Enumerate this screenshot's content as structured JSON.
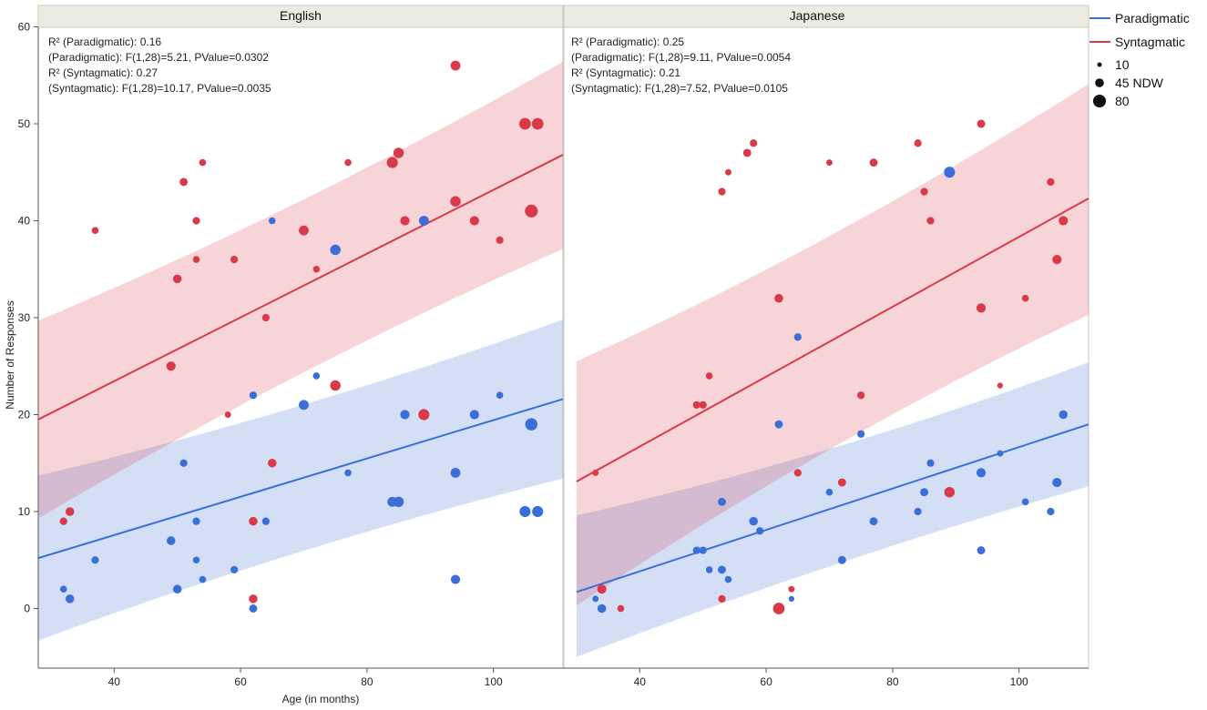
{
  "chart_data": {
    "type": "scatter",
    "ylabel": "Number of Responses",
    "xlabel": "Age (in months)",
    "ylim": [
      -7,
      60
    ],
    "xlim": [
      28,
      111
    ],
    "yticks": [
      0,
      10,
      20,
      30,
      40,
      50,
      60
    ],
    "xticks": [
      40,
      60,
      80,
      100
    ],
    "grid": false,
    "legend": {
      "placement": "top-right",
      "series": [
        {
          "name": "Paradigmatic",
          "color": "#3a6fd8"
        },
        {
          "name": "Syntagmatic",
          "color": "#d93a4a"
        }
      ],
      "sizes": [
        {
          "label": "10",
          "ndw": 10
        },
        {
          "label": "45 NDW",
          "ndw": 45
        },
        {
          "label": "80",
          "ndw": 80
        }
      ]
    },
    "panels": [
      {
        "title": "English",
        "stats": [
          "R² (Paradigmatic): 0.16",
          "(Paradigmatic): F(1,28)=5.21, PValue=0.0302",
          "R² (Syntagmatic): 0.27",
          "(Syntagmatic): F(1,28)=10.17, PValue=0.0035"
        ],
        "fits": {
          "Paradigmatic": {
            "x": [
              28,
              111
            ],
            "y": [
              5.2,
              21.6
            ],
            "band_lo": [
              -3.3,
              13.4
            ],
            "band_hi": [
              13.7,
              29.8
            ]
          },
          "Syntagmatic": {
            "x": [
              28,
              111
            ],
            "y": [
              19.5,
              46.8
            ],
            "band_lo": [
              9.3,
              37.1
            ],
            "band_hi": [
              29.7,
              56.4
            ]
          }
        },
        "series": [
          {
            "name": "Paradigmatic",
            "points": [
              [
                32,
                2,
                30
              ],
              [
                33,
                1,
                45
              ],
              [
                37,
                5,
                35
              ],
              [
                49,
                7,
                45
              ],
              [
                50,
                2,
                45
              ],
              [
                51,
                15,
                35
              ],
              [
                53,
                9,
                35
              ],
              [
                53,
                5,
                30
              ],
              [
                54,
                3,
                30
              ],
              [
                59,
                4,
                35
              ],
              [
                62,
                22,
                35
              ],
              [
                62,
                0,
                40
              ],
              [
                64,
                9,
                35
              ],
              [
                65,
                40,
                30
              ],
              [
                70,
                21,
                55
              ],
              [
                72,
                24,
                30
              ],
              [
                75,
                37,
                60
              ],
              [
                77,
                14,
                30
              ],
              [
                84,
                11,
                55
              ],
              [
                85,
                11,
                60
              ],
              [
                86,
                20,
                50
              ],
              [
                89,
                40,
                55
              ],
              [
                94,
                14,
                55
              ],
              [
                94,
                3,
                50
              ],
              [
                97,
                20,
                50
              ],
              [
                101,
                22,
                30
              ],
              [
                105,
                10,
                65
              ],
              [
                106,
                19,
                75
              ],
              [
                107,
                10,
                65
              ]
            ]
          },
          {
            "name": "Syntagmatic",
            "points": [
              [
                32,
                9,
                35
              ],
              [
                33,
                10,
                45
              ],
              [
                37,
                39,
                30
              ],
              [
                49,
                25,
                50
              ],
              [
                50,
                34,
                45
              ],
              [
                51,
                44,
                40
              ],
              [
                53,
                40,
                35
              ],
              [
                53,
                36,
                30
              ],
              [
                54,
                46,
                30
              ],
              [
                58,
                20,
                25
              ],
              [
                59,
                36,
                35
              ],
              [
                62,
                9,
                45
              ],
              [
                62,
                1,
                45
              ],
              [
                64,
                30,
                35
              ],
              [
                65,
                15,
                45
              ],
              [
                70,
                39,
                55
              ],
              [
                72,
                35,
                30
              ],
              [
                75,
                23,
                60
              ],
              [
                77,
                46,
                30
              ],
              [
                84,
                46,
                65
              ],
              [
                85,
                47,
                60
              ],
              [
                86,
                40,
                50
              ],
              [
                89,
                20,
                65
              ],
              [
                94,
                56,
                55
              ],
              [
                94,
                42,
                60
              ],
              [
                97,
                40,
                50
              ],
              [
                101,
                38,
                35
              ],
              [
                105,
                50,
                70
              ],
              [
                107,
                50,
                70
              ],
              [
                106,
                41,
                80
              ]
            ]
          }
        ]
      },
      {
        "title": "Japanese",
        "stats": [
          "R² (Paradigmatic): 0.25",
          "(Paradigmatic): F(1,28)=9.11, PValue=0.0054",
          "R² (Syntagmatic): 0.21",
          "(Syntagmatic): F(1,28)=7.52, PValue=0.0105"
        ],
        "fits": {
          "Paradigmatic": {
            "x": [
              30,
              111
            ],
            "y": [
              1.7,
              19.0
            ],
            "band_lo": [
              -5.0,
              12.6
            ],
            "band_hi": [
              9.6,
              25.4
            ]
          },
          "Syntagmatic": {
            "x": [
              30,
              111
            ],
            "y": [
              13.1,
              42.3
            ],
            "band_lo": [
              0.3,
              30.3
            ],
            "band_hi": [
              25.5,
              54.1
            ]
          }
        },
        "series": [
          {
            "name": "Paradigmatic",
            "points": [
              [
                33,
                1,
                25
              ],
              [
                34,
                0,
                45
              ],
              [
                49,
                6,
                35
              ],
              [
                50,
                6,
                35
              ],
              [
                51,
                4,
                30
              ],
              [
                53,
                4,
                40
              ],
              [
                53,
                11,
                40
              ],
              [
                54,
                3,
                30
              ],
              [
                58,
                9,
                45
              ],
              [
                59,
                8,
                35
              ],
              [
                62,
                19,
                40
              ],
              [
                64,
                1,
                20
              ],
              [
                65,
                28,
                35
              ],
              [
                70,
                12,
                30
              ],
              [
                72,
                5,
                40
              ],
              [
                75,
                18,
                35
              ],
              [
                77,
                9,
                40
              ],
              [
                84,
                10,
                35
              ],
              [
                85,
                12,
                40
              ],
              [
                86,
                15,
                35
              ],
              [
                89,
                45,
                65
              ],
              [
                94,
                14,
                50
              ],
              [
                94,
                6,
                40
              ],
              [
                97,
                16,
                25
              ],
              [
                101,
                11,
                30
              ],
              [
                105,
                10,
                35
              ],
              [
                106,
                13,
                50
              ],
              [
                107,
                20,
                45
              ]
            ]
          },
          {
            "name": "Syntagmatic",
            "points": [
              [
                33,
                14,
                25
              ],
              [
                34,
                2,
                50
              ],
              [
                37,
                0,
                30
              ],
              [
                49,
                21,
                35
              ],
              [
                50,
                21,
                35
              ],
              [
                51,
                24,
                30
              ],
              [
                53,
                43,
                35
              ],
              [
                53,
                1,
                35
              ],
              [
                54,
                45,
                25
              ],
              [
                57,
                47,
                40
              ],
              [
                58,
                48,
                35
              ],
              [
                62,
                32,
                45
              ],
              [
                62,
                0,
                70
              ],
              [
                64,
                2,
                25
              ],
              [
                65,
                14,
                35
              ],
              [
                70,
                46,
                25
              ],
              [
                72,
                13,
                40
              ],
              [
                75,
                22,
                35
              ],
              [
                77,
                46,
                40
              ],
              [
                84,
                48,
                35
              ],
              [
                85,
                43,
                35
              ],
              [
                86,
                40,
                35
              ],
              [
                89,
                12,
                60
              ],
              [
                94,
                31,
                50
              ],
              [
                94,
                50,
                40
              ],
              [
                97,
                23,
                20
              ],
              [
                101,
                32,
                30
              ],
              [
                105,
                44,
                35
              ],
              [
                106,
                36,
                50
              ],
              [
                107,
                40,
                50
              ]
            ]
          }
        ]
      }
    ]
  }
}
